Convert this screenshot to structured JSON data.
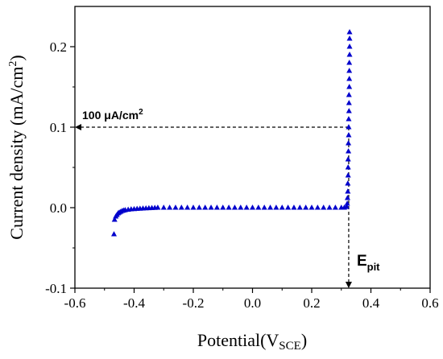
{
  "chart_data": {
    "type": "scatter",
    "xlabel": {
      "main": "Potential(V",
      "sub": "SCE",
      "close": ")"
    },
    "ylabel": {
      "main": "Current density (mA/cm",
      "sup": "2",
      "close": ")"
    },
    "xlim": [
      -0.6,
      0.6
    ],
    "ylim": [
      -0.1,
      0.25
    ],
    "xticks": [
      "-0.6",
      "-0.4",
      "-0.2",
      "0.0",
      "0.2",
      "0.4",
      "0.6"
    ],
    "yticks": [
      "-0.1",
      "0.0",
      "0.1",
      "0.2"
    ],
    "grid": false,
    "marker_color": "#0000cc",
    "marker": "triangle",
    "series": [
      {
        "points": [
          [
            -0.468,
            -0.033
          ],
          [
            -0.466,
            -0.015
          ],
          [
            -0.462,
            -0.011
          ],
          [
            -0.458,
            -0.009
          ],
          [
            -0.454,
            -0.007
          ],
          [
            -0.45,
            -0.006
          ],
          [
            -0.445,
            -0.005
          ],
          [
            -0.44,
            -0.004
          ],
          [
            -0.435,
            -0.0035
          ],
          [
            -0.43,
            -0.003
          ],
          [
            -0.42,
            -0.0025
          ],
          [
            -0.41,
            -0.002
          ],
          [
            -0.4,
            -0.0017
          ],
          [
            -0.39,
            -0.0014
          ],
          [
            -0.38,
            -0.0012
          ],
          [
            -0.37,
            -0.001
          ],
          [
            -0.36,
            -0.0008
          ],
          [
            -0.35,
            -0.0006
          ],
          [
            -0.34,
            -0.0004
          ],
          [
            -0.33,
            -0.0002
          ],
          [
            -0.32,
            0.0
          ],
          [
            -0.3,
            0.0
          ],
          [
            -0.28,
            0.0
          ],
          [
            -0.26,
            0.0
          ],
          [
            -0.24,
            0.0
          ],
          [
            -0.22,
            0.0
          ],
          [
            -0.2,
            0.0
          ],
          [
            -0.18,
            0.0
          ],
          [
            -0.16,
            0.0
          ],
          [
            -0.14,
            0.0
          ],
          [
            -0.12,
            0.0
          ],
          [
            -0.1,
            0.0
          ],
          [
            -0.08,
            0.0
          ],
          [
            -0.06,
            0.0
          ],
          [
            -0.04,
            0.0
          ],
          [
            -0.02,
            0.0
          ],
          [
            0.0,
            0.0
          ],
          [
            0.02,
            0.0
          ],
          [
            0.04,
            0.0
          ],
          [
            0.06,
            0.0
          ],
          [
            0.08,
            0.0
          ],
          [
            0.1,
            0.0
          ],
          [
            0.12,
            0.0
          ],
          [
            0.14,
            0.0
          ],
          [
            0.16,
            0.0
          ],
          [
            0.18,
            0.0
          ],
          [
            0.2,
            0.0
          ],
          [
            0.22,
            0.0
          ],
          [
            0.24,
            0.0
          ],
          [
            0.26,
            0.0
          ],
          [
            0.28,
            0.0
          ],
          [
            0.3,
            0.0
          ],
          [
            0.31,
            0.0
          ],
          [
            0.318,
            0.001
          ],
          [
            0.32,
            0.005
          ],
          [
            0.321,
            0.012
          ],
          [
            0.322,
            0.02
          ],
          [
            0.322,
            0.03
          ],
          [
            0.323,
            0.04
          ],
          [
            0.323,
            0.05
          ],
          [
            0.323,
            0.06
          ],
          [
            0.324,
            0.07
          ],
          [
            0.324,
            0.08
          ],
          [
            0.325,
            0.09
          ],
          [
            0.325,
            0.1
          ],
          [
            0.325,
            0.11
          ],
          [
            0.326,
            0.12
          ],
          [
            0.326,
            0.13
          ],
          [
            0.326,
            0.14
          ],
          [
            0.327,
            0.15
          ],
          [
            0.327,
            0.16
          ],
          [
            0.327,
            0.17
          ],
          [
            0.327,
            0.18
          ],
          [
            0.328,
            0.19
          ],
          [
            0.328,
            0.2
          ],
          [
            0.328,
            0.21
          ],
          [
            0.328,
            0.218
          ]
        ]
      }
    ],
    "annotations": {
      "current_threshold": {
        "label": "100 μA/cm",
        "label_sup": "2",
        "y": 0.1,
        "arrow_to_x": -0.6,
        "from_x": 0.325
      },
      "pitting_potential": {
        "label": "E",
        "label_sub": "pit",
        "x": 0.325,
        "from_y": 0.1,
        "arrow_to_y": -0.1
      }
    }
  }
}
